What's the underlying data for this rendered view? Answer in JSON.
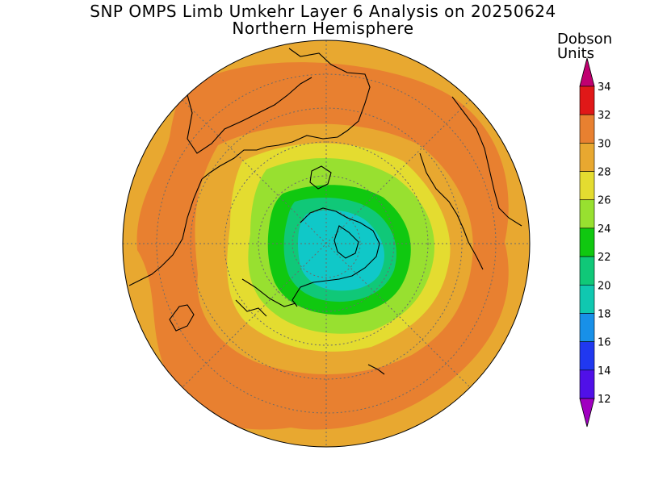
{
  "title": {
    "line1": "SNP OMPS Limb Umkehr Layer 6 Analysis on 20250624",
    "line2": "Northern Hemisphere"
  },
  "colorbar": {
    "units_line1": "Dobson",
    "units_line2": "Units",
    "levels": [
      {
        "value": 12,
        "color": "#7a10d8"
      },
      {
        "value": 14,
        "color": "#5010e8"
      },
      {
        "value": 16,
        "color": "#2038f0"
      },
      {
        "value": 18,
        "color": "#1890e8"
      },
      {
        "value": 20,
        "color": "#10c8b0"
      },
      {
        "value": 22,
        "color": "#10c878"
      },
      {
        "value": 24,
        "color": "#10c810"
      },
      {
        "value": 26,
        "color": "#98e030"
      },
      {
        "value": 28,
        "color": "#e4dc30"
      },
      {
        "value": 30,
        "color": "#e8a830"
      },
      {
        "value": 32,
        "color": "#e88030"
      },
      {
        "value": 34,
        "color": "#e01818"
      }
    ],
    "under_color": "#a000c0",
    "over_color": "#c00070"
  },
  "map": {
    "projection": "north-polar-stereographic",
    "contour_colors": {
      "outer": "#e8a830",
      "band_30_32": "#e88030",
      "band_28_30": "#e8a830",
      "band_26_28": "#e4dc30",
      "band_24_26": "#98e030",
      "band_22_24": "#10c810",
      "band_20_22": "#10c878",
      "core": "#10c8c8"
    }
  }
}
